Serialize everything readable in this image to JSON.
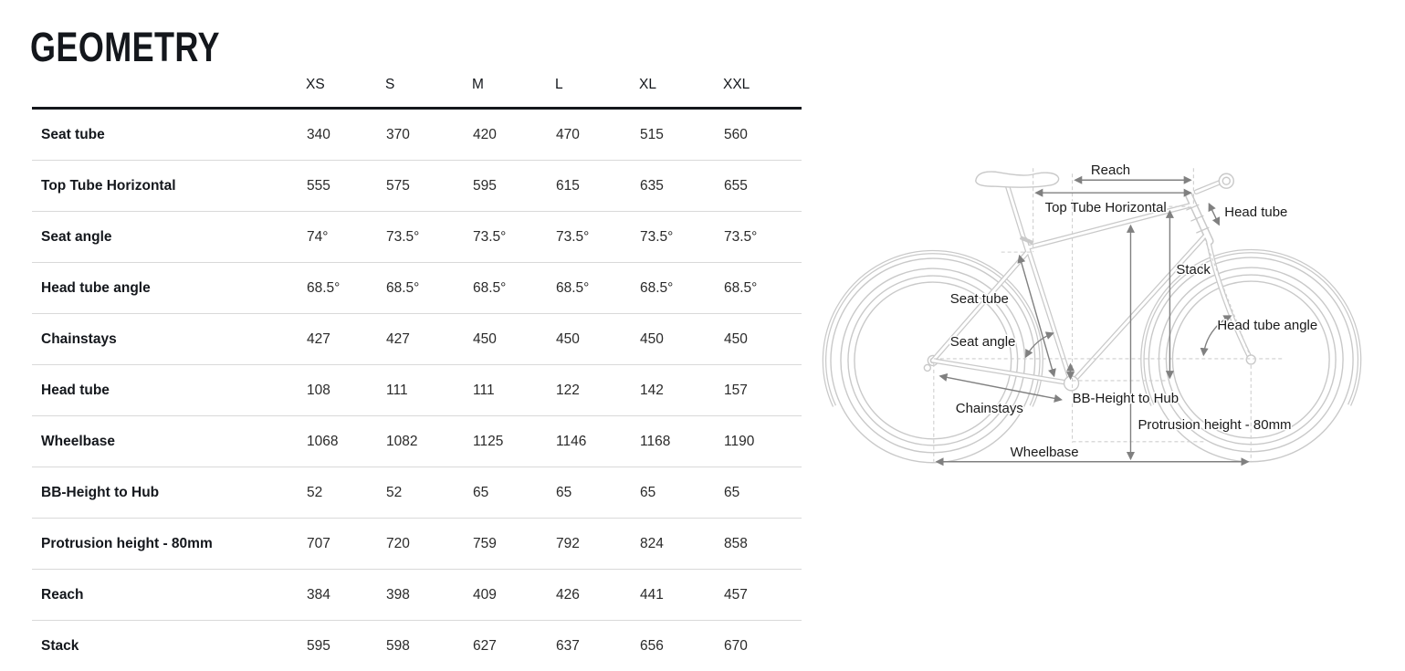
{
  "page": {
    "title": "GEOMETRY"
  },
  "table": {
    "size_columns": [
      "XS",
      "S",
      "M",
      "L",
      "XL",
      "XXL"
    ],
    "rows": [
      {
        "label": "Seat tube",
        "values": [
          "340",
          "370",
          "420",
          "470",
          "515",
          "560"
        ]
      },
      {
        "label": "Top Tube Horizontal",
        "values": [
          "555",
          "575",
          "595",
          "615",
          "635",
          "655"
        ]
      },
      {
        "label": "Seat angle",
        "values": [
          "74°",
          "73.5°",
          "73.5°",
          "73.5°",
          "73.5°",
          "73.5°"
        ]
      },
      {
        "label": "Head tube angle",
        "values": [
          "68.5°",
          "68.5°",
          "68.5°",
          "68.5°",
          "68.5°",
          "68.5°"
        ]
      },
      {
        "label": "Chainstays",
        "values": [
          "427",
          "427",
          "450",
          "450",
          "450",
          "450"
        ]
      },
      {
        "label": "Head tube",
        "values": [
          "108",
          "111",
          "111",
          "122",
          "142",
          "157"
        ]
      },
      {
        "label": "Wheelbase",
        "values": [
          "1068",
          "1082",
          "1125",
          "1146",
          "1168",
          "1190"
        ]
      },
      {
        "label": "BB-Height to Hub",
        "values": [
          "52",
          "52",
          "65",
          "65",
          "65",
          "65"
        ]
      },
      {
        "label": "Protrusion height - 80mm",
        "values": [
          "707",
          "720",
          "759",
          "792",
          "824",
          "858"
        ]
      },
      {
        "label": "Reach",
        "values": [
          "384",
          "398",
          "409",
          "426",
          "441",
          "457"
        ]
      },
      {
        "label": "Stack",
        "values": [
          "595",
          "598",
          "627",
          "637",
          "656",
          "670"
        ]
      }
    ]
  },
  "diagram": {
    "labels": {
      "reach": "Reach",
      "top_tube_horizontal": "Top Tube Horizontal",
      "head_tube": "Head tube",
      "stack": "Stack",
      "seat_tube": "Seat tube",
      "head_tube_angle": "Head tube angle",
      "seat_angle": "Seat angle",
      "chainstays": "Chainstays",
      "bb_height_to_hub": "BB-Height to Hub",
      "protrusion_height": "Protrusion height - 80mm",
      "wheelbase": "Wheelbase"
    },
    "colors": {
      "bike_line": "#c9c9c9",
      "dashed_line": "#cfcfcf",
      "arrow": "#808080",
      "label_text": "#1a1a1a",
      "table_rule": "#d9d9d9",
      "header_rule": "#14171c"
    }
  }
}
